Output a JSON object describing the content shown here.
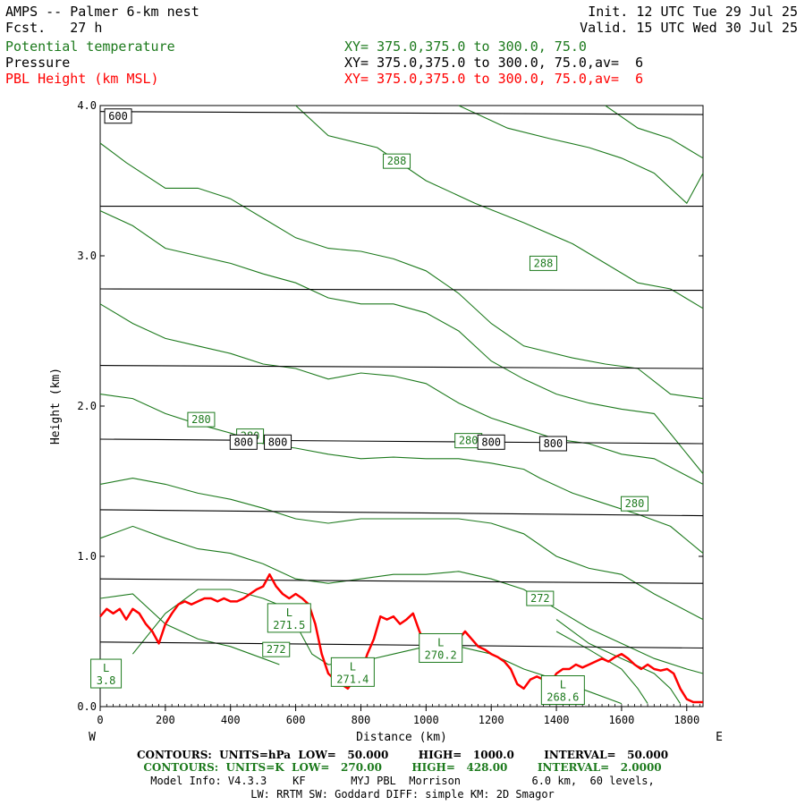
{
  "header": {
    "title": "AMPS -- Palmer 6-km nest",
    "fcst_label": "Fcst.",
    "fcst_value": "27 h",
    "init": "Init. 12 UTC Tue 29 Jul 25",
    "valid": "Valid. 15 UTC Wed 30 Jul 25",
    "fields": [
      {
        "name": "Potential temperature",
        "xy": "XY= 375.0,375.0 to 300.0, 75.0",
        "color": "#1d7a1d"
      },
      {
        "name": "Pressure",
        "xy": "XY= 375.0,375.0 to 300.0, 75.0,av=  6",
        "color": "#000000"
      },
      {
        "name": "PBL Height (km MSL)",
        "xy": "XY= 375.0,375.0 to 300.0, 75.0,av=  6",
        "color": "#ff0000"
      }
    ]
  },
  "chart_data": {
    "type": "line",
    "xlabel": "Distance (km)",
    "ylabel": "Height (km)",
    "xlim": [
      0,
      1850
    ],
    "ylim": [
      0,
      4.0
    ],
    "x_ticks": [
      0,
      200,
      400,
      600,
      800,
      1000,
      1200,
      1400,
      1600,
      1800
    ],
    "y_ticks": [
      0.0,
      1.0,
      2.0,
      3.0,
      4.0
    ],
    "y_tick_labels": [
      "0.0",
      "1.0",
      "2.0",
      "3.0",
      "4.0"
    ],
    "west_label": "W",
    "east_label": "E",
    "pressure_isobars": [
      {
        "label": "600",
        "points": [
          [
            0,
            3.96
          ],
          [
            1850,
            3.94
          ]
        ]
      },
      {
        "label": "",
        "points": [
          [
            0,
            3.33
          ],
          [
            1850,
            3.33
          ]
        ]
      },
      {
        "label": "",
        "points": [
          [
            0,
            2.78
          ],
          [
            1850,
            2.77
          ]
        ]
      },
      {
        "label": "",
        "points": [
          [
            0,
            2.27
          ],
          [
            1850,
            2.25
          ]
        ]
      },
      {
        "label": "800",
        "points": [
          [
            0,
            1.78
          ],
          [
            1850,
            1.75
          ]
        ]
      },
      {
        "label": "",
        "points": [
          [
            0,
            1.31
          ],
          [
            1850,
            1.27
          ]
        ]
      },
      {
        "label": "",
        "points": [
          [
            0,
            0.85
          ],
          [
            1850,
            0.82
          ]
        ]
      },
      {
        "label": "",
        "points": [
          [
            0,
            0.43
          ],
          [
            1850,
            0.39
          ]
        ]
      }
    ],
    "isobar_labels": [
      {
        "text": "600",
        "x": 55,
        "y": 3.93
      },
      {
        "text": "800",
        "x": 440,
        "y": 1.76
      },
      {
        "text": "800",
        "x": 545,
        "y": 1.76
      },
      {
        "text": "800",
        "x": 1200,
        "y": 1.76
      },
      {
        "text": "800",
        "x": 1390,
        "y": 1.75
      }
    ],
    "theta_isentropes": [
      {
        "points": [
          [
            600,
            4.0
          ],
          [
            700,
            3.8
          ],
          [
            850,
            3.72
          ],
          [
            1000,
            3.5
          ],
          [
            1150,
            3.35
          ],
          [
            1300,
            3.22
          ],
          [
            1450,
            3.08
          ],
          [
            1550,
            2.95
          ],
          [
            1650,
            2.82
          ],
          [
            1750,
            2.78
          ],
          [
            1850,
            2.65
          ]
        ]
      },
      {
        "points": [
          [
            1100,
            4.0
          ],
          [
            1250,
            3.85
          ],
          [
            1380,
            3.78
          ],
          [
            1500,
            3.72
          ],
          [
            1600,
            3.65
          ],
          [
            1700,
            3.55
          ],
          [
            1800,
            3.35
          ],
          [
            1850,
            3.55
          ]
        ]
      },
      {
        "points": [
          [
            1550,
            4.0
          ],
          [
            1650,
            3.85
          ],
          [
            1750,
            3.78
          ],
          [
            1850,
            3.65
          ]
        ]
      },
      {
        "points": [
          [
            0,
            3.75
          ],
          [
            80,
            3.62
          ],
          [
            200,
            3.45
          ],
          [
            300,
            3.45
          ],
          [
            400,
            3.38
          ],
          [
            500,
            3.25
          ],
          [
            600,
            3.12
          ],
          [
            700,
            3.05
          ],
          [
            800,
            3.03
          ],
          [
            900,
            2.98
          ],
          [
            1000,
            2.9
          ],
          [
            1100,
            2.75
          ],
          [
            1200,
            2.55
          ],
          [
            1300,
            2.4
          ],
          [
            1450,
            2.32
          ],
          [
            1550,
            2.28
          ],
          [
            1650,
            2.25
          ],
          [
            1750,
            2.08
          ],
          [
            1850,
            2.05
          ]
        ]
      },
      {
        "points": [
          [
            0,
            3.3
          ],
          [
            100,
            3.2
          ],
          [
            200,
            3.05
          ],
          [
            300,
            3.0
          ],
          [
            400,
            2.95
          ],
          [
            500,
            2.88
          ],
          [
            600,
            2.82
          ],
          [
            700,
            2.72
          ],
          [
            800,
            2.68
          ],
          [
            900,
            2.68
          ],
          [
            1000,
            2.62
          ],
          [
            1100,
            2.5
          ],
          [
            1200,
            2.3
          ],
          [
            1300,
            2.18
          ],
          [
            1400,
            2.08
          ],
          [
            1500,
            2.02
          ],
          [
            1600,
            1.98
          ],
          [
            1700,
            1.95
          ],
          [
            1850,
            1.55
          ]
        ]
      },
      {
        "points": [
          [
            0,
            2.68
          ],
          [
            100,
            2.55
          ],
          [
            200,
            2.45
          ],
          [
            300,
            2.4
          ],
          [
            400,
            2.35
          ],
          [
            500,
            2.28
          ],
          [
            600,
            2.25
          ],
          [
            700,
            2.18
          ],
          [
            800,
            2.22
          ],
          [
            900,
            2.2
          ],
          [
            1000,
            2.15
          ],
          [
            1100,
            2.02
          ],
          [
            1200,
            1.92
          ],
          [
            1300,
            1.85
          ],
          [
            1400,
            1.78
          ],
          [
            1500,
            1.75
          ],
          [
            1600,
            1.68
          ],
          [
            1700,
            1.65
          ],
          [
            1850,
            1.48
          ]
        ]
      },
      {
        "points": [
          [
            0,
            2.08
          ],
          [
            100,
            2.05
          ],
          [
            200,
            1.95
          ],
          [
            300,
            1.88
          ],
          [
            400,
            1.82
          ],
          [
            500,
            1.75
          ],
          [
            600,
            1.72
          ],
          [
            700,
            1.68
          ],
          [
            800,
            1.65
          ],
          [
            900,
            1.66
          ],
          [
            1000,
            1.65
          ],
          [
            1100,
            1.65
          ],
          [
            1200,
            1.62
          ],
          [
            1300,
            1.58
          ],
          [
            1350,
            1.52
          ],
          [
            1450,
            1.42
          ],
          [
            1550,
            1.35
          ],
          [
            1650,
            1.28
          ],
          [
            1750,
            1.2
          ],
          [
            1850,
            1.02
          ]
        ]
      },
      {
        "points": [
          [
            0,
            1.48
          ],
          [
            100,
            1.52
          ],
          [
            200,
            1.48
          ],
          [
            300,
            1.42
          ],
          [
            400,
            1.38
          ],
          [
            500,
            1.32
          ],
          [
            600,
            1.25
          ],
          [
            700,
            1.22
          ],
          [
            800,
            1.25
          ],
          [
            900,
            1.25
          ],
          [
            1000,
            1.25
          ],
          [
            1100,
            1.25
          ],
          [
            1200,
            1.22
          ],
          [
            1300,
            1.15
          ],
          [
            1400,
            1.0
          ],
          [
            1500,
            0.92
          ],
          [
            1600,
            0.88
          ],
          [
            1700,
            0.75
          ],
          [
            1850,
            0.58
          ]
        ]
      },
      {
        "points": [
          [
            0,
            1.12
          ],
          [
            100,
            1.2
          ],
          [
            200,
            1.12
          ],
          [
            300,
            1.05
          ],
          [
            400,
            1.02
          ],
          [
            500,
            0.95
          ],
          [
            600,
            0.85
          ],
          [
            700,
            0.82
          ],
          [
            800,
            0.85
          ],
          [
            900,
            0.88
          ],
          [
            1000,
            0.88
          ],
          [
            1100,
            0.9
          ],
          [
            1200,
            0.85
          ],
          [
            1300,
            0.78
          ],
          [
            1400,
            0.65
          ],
          [
            1500,
            0.52
          ],
          [
            1600,
            0.42
          ],
          [
            1700,
            0.32
          ],
          [
            1800,
            0.25
          ],
          [
            1850,
            0.22
          ]
        ]
      },
      {
        "points": [
          [
            0,
            0.72
          ],
          [
            100,
            0.75
          ],
          [
            200,
            0.55
          ],
          [
            300,
            0.45
          ],
          [
            400,
            0.4
          ],
          [
            500,
            0.32
          ],
          [
            550,
            0.28
          ]
        ]
      },
      {
        "points": [
          [
            100,
            0.35
          ],
          [
            200,
            0.62
          ],
          [
            300,
            0.78
          ],
          [
            400,
            0.78
          ],
          [
            500,
            0.72
          ],
          [
            580,
            0.65
          ],
          [
            600,
            0.55
          ],
          [
            650,
            0.35
          ],
          [
            700,
            0.28
          ],
          [
            800,
            0.3
          ],
          [
            900,
            0.35
          ],
          [
            1000,
            0.4
          ],
          [
            1100,
            0.4
          ],
          [
            1200,
            0.35
          ],
          [
            1300,
            0.25
          ],
          [
            1400,
            0.18
          ],
          [
            1500,
            0.1
          ],
          [
            1600,
            0.02
          ]
        ]
      },
      {
        "points": [
          [
            1400,
            0.58
          ],
          [
            1500,
            0.42
          ],
          [
            1600,
            0.32
          ],
          [
            1700,
            0.22
          ],
          [
            1750,
            0.12
          ],
          [
            1780,
            0.02
          ]
        ]
      },
      {
        "points": [
          [
            1400,
            0.5
          ],
          [
            1500,
            0.38
          ],
          [
            1600,
            0.25
          ],
          [
            1650,
            0.12
          ],
          [
            1680,
            0.02
          ]
        ]
      }
    ],
    "theta_labels": [
      {
        "text": "288",
        "x": 910,
        "y": 3.63
      },
      {
        "text": "288",
        "x": 1360,
        "y": 2.95
      },
      {
        "text": "280",
        "x": 310,
        "y": 1.91
      },
      {
        "text": "280",
        "x": 460,
        "y": 1.8
      },
      {
        "text": "280",
        "x": 1130,
        "y": 1.77
      },
      {
        "text": "280",
        "x": 1640,
        "y": 1.35
      },
      {
        "text": "272",
        "x": 1350,
        "y": 0.72
      },
      {
        "text": "272",
        "x": 540,
        "y": 0.38
      }
    ],
    "lows": [
      {
        "text": "271.5",
        "x": 580,
        "y": 0.59
      },
      {
        "text": "271.4",
        "x": 775,
        "y": 0.23
      },
      {
        "text": "270.2",
        "x": 1045,
        "y": 0.39
      },
      {
        "text": "268.6",
        "x": 1420,
        "y": 0.11
      },
      {
        "text": "3.8",
        "x": 18,
        "y": 0.22
      }
    ],
    "pbl_height": {
      "name": "PBL Height (km MSL)",
      "color": "#ff0000",
      "x": [
        0,
        20,
        40,
        60,
        80,
        100,
        120,
        140,
        160,
        180,
        200,
        220,
        240,
        260,
        280,
        300,
        320,
        340,
        360,
        380,
        400,
        420,
        440,
        460,
        480,
        500,
        520,
        540,
        560,
        580,
        600,
        620,
        640,
        660,
        680,
        700,
        720,
        740,
        760,
        780,
        800,
        820,
        840,
        860,
        880,
        900,
        920,
        940,
        960,
        980,
        1000,
        1020,
        1040,
        1060,
        1080,
        1100,
        1120,
        1140,
        1160,
        1180,
        1200,
        1220,
        1240,
        1260,
        1280,
        1300,
        1320,
        1340,
        1360,
        1380,
        1400,
        1420,
        1440,
        1460,
        1480,
        1500,
        1520,
        1540,
        1560,
        1580,
        1600,
        1620,
        1640,
        1660,
        1680,
        1700,
        1720,
        1740,
        1760,
        1780,
        1800,
        1820,
        1850
      ],
      "values": [
        0.6,
        0.65,
        0.62,
        0.65,
        0.58,
        0.65,
        0.62,
        0.55,
        0.5,
        0.42,
        0.55,
        0.62,
        0.68,
        0.7,
        0.68,
        0.7,
        0.72,
        0.72,
        0.7,
        0.72,
        0.7,
        0.7,
        0.72,
        0.75,
        0.78,
        0.8,
        0.88,
        0.8,
        0.75,
        0.72,
        0.75,
        0.72,
        0.68,
        0.55,
        0.35,
        0.22,
        0.18,
        0.15,
        0.12,
        0.18,
        0.22,
        0.35,
        0.45,
        0.6,
        0.58,
        0.6,
        0.55,
        0.58,
        0.62,
        0.5,
        0.4,
        0.32,
        0.38,
        0.35,
        0.36,
        0.45,
        0.5,
        0.45,
        0.4,
        0.38,
        0.35,
        0.33,
        0.3,
        0.25,
        0.15,
        0.12,
        0.18,
        0.2,
        0.18,
        0.15,
        0.22,
        0.25,
        0.25,
        0.28,
        0.26,
        0.28,
        0.3,
        0.32,
        0.3,
        0.33,
        0.35,
        0.32,
        0.28,
        0.25,
        0.28,
        0.25,
        0.24,
        0.25,
        0.22,
        0.12,
        0.05,
        0.03,
        0.03
      ]
    }
  },
  "footer": {
    "line1": "CONTOURS:  UNITS=hPa  LOW=   50.000        HIGH=   1000.0        INTERVAL=   50.000",
    "line2": "CONTOURS:  UNITS=K  LOW=   270.00        HIGH=   428.00        INTERVAL=   2.0000",
    "line3": "Model Info: V4.3.3    KF       MYJ PBL  Morrison           6.0 km,  60 levels,",
    "line4": "LW: RRTM SW: Goddard DIFF: simple KM: 2D Smagor"
  },
  "colors": {
    "theta": "#1d7a1d",
    "pressure": "#000000",
    "pbl": "#ff0000"
  }
}
